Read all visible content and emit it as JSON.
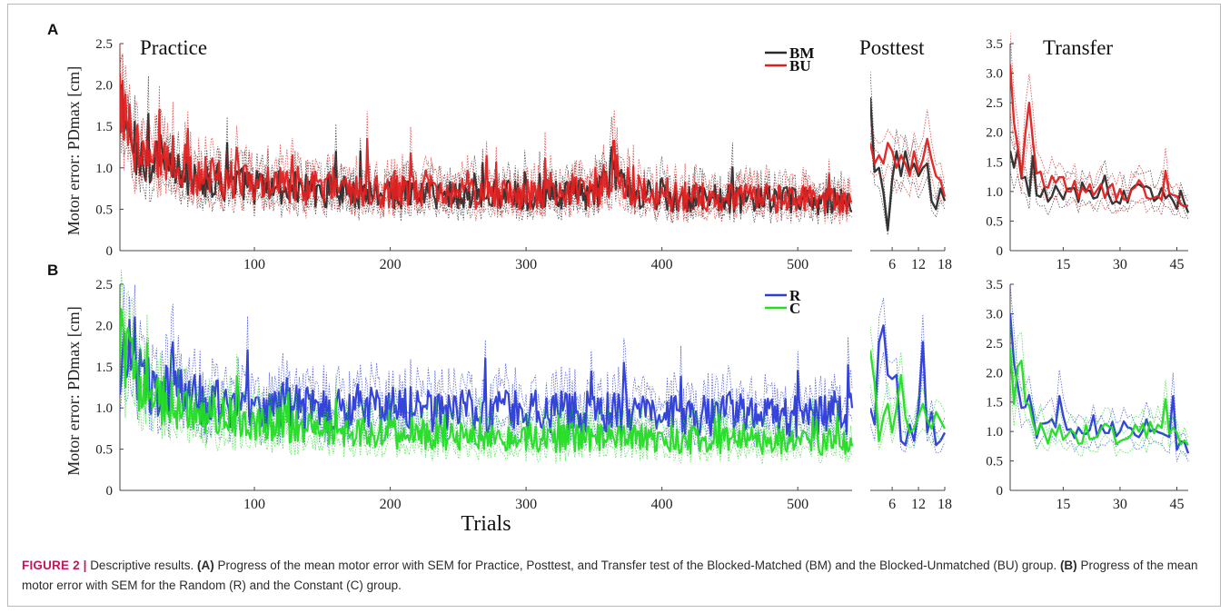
{
  "figure": {
    "panels": [
      {
        "label": "A",
        "ylabel": "Motor error: PDmax [cm]",
        "subplots": [
          {
            "title": "Practice",
            "xlim": [
              1,
              540
            ],
            "ylim": [
              0,
              2.5
            ],
            "xticks": [
              100,
              200,
              300,
              400,
              500
            ],
            "yticks": [
              "0",
              "0.5",
              "1.0",
              "1.5",
              "2.0",
              "2.5"
            ]
          },
          {
            "title": "Posttest",
            "xlim": [
              1,
              18
            ],
            "ylim": [
              0,
              2.5
            ],
            "xticks": [
              6,
              12,
              18
            ],
            "yticks": []
          },
          {
            "title": "Transfer",
            "xlim": [
              1,
              48
            ],
            "ylim": [
              0,
              3.5
            ],
            "xticks": [
              15,
              30,
              45
            ],
            "yticks": [
              "0",
              "0.5",
              "1.0",
              "1.5",
              "2.0",
              "2.5",
              "3.0",
              "3.5"
            ]
          }
        ],
        "legend": [
          {
            "name": "BM",
            "color": "#2a2a2a"
          },
          {
            "name": "BU",
            "color": "#e02020"
          }
        ]
      },
      {
        "label": "B",
        "ylabel": "Motor error: PDmax [cm]",
        "subplots": [
          {
            "title": "",
            "xlim": [
              1,
              540
            ],
            "ylim": [
              0,
              2.5
            ],
            "xticks": [
              100,
              200,
              300,
              400,
              500
            ],
            "yticks": [
              "0",
              "0.5",
              "1.0",
              "1.5",
              "2.0",
              "2.5"
            ]
          },
          {
            "title": "",
            "xlim": [
              1,
              18
            ],
            "ylim": [
              0,
              2.5
            ],
            "xticks": [
              6,
              12,
              18
            ],
            "yticks": []
          },
          {
            "title": "",
            "xlim": [
              1,
              48
            ],
            "ylim": [
              0,
              3.5
            ],
            "xticks": [
              15,
              30,
              45
            ],
            "yticks": [
              "0",
              "0.5",
              "1.0",
              "1.5",
              "2.0",
              "2.5",
              "3.0",
              "3.5"
            ]
          }
        ],
        "legend": [
          {
            "name": "R",
            "color": "#2a3bd8"
          },
          {
            "name": "C",
            "color": "#22dd22"
          }
        ]
      }
    ],
    "xlabel": "Trials"
  },
  "chart_data": [
    {
      "type": "line",
      "panel": "A",
      "subplot": "Practice",
      "xlim": [
        1,
        540
      ],
      "ylim": [
        0,
        2.5
      ],
      "band": "SEM (dotted)",
      "series": [
        {
          "name": "BM",
          "color": "#2a2a2a",
          "anchors": [
            [
              1,
              1.8
            ],
            [
              5,
              1.45
            ],
            [
              15,
              1.15
            ],
            [
              30,
              1.0
            ],
            [
              60,
              0.85
            ],
            [
              100,
              0.78
            ],
            [
              150,
              0.72
            ],
            [
              200,
              0.7
            ],
            [
              250,
              0.68
            ],
            [
              300,
              0.66
            ],
            [
              350,
              0.68
            ],
            [
              365,
              0.9
            ],
            [
              380,
              0.7
            ],
            [
              400,
              0.65
            ],
            [
              450,
              0.62
            ],
            [
              500,
              0.6
            ],
            [
              540,
              0.58
            ]
          ],
          "spikes": [
            [
              2,
              2.0
            ],
            [
              22,
              1.65
            ],
            [
              80,
              1.3
            ],
            [
              363,
              1.25
            ]
          ]
        },
        {
          "name": "BU",
          "color": "#e02020",
          "anchors": [
            [
              1,
              2.0
            ],
            [
              5,
              1.6
            ],
            [
              15,
              1.2
            ],
            [
              30,
              1.05
            ],
            [
              60,
              0.9
            ],
            [
              100,
              0.8
            ],
            [
              150,
              0.75
            ],
            [
              200,
              0.72
            ],
            [
              250,
              0.7
            ],
            [
              300,
              0.68
            ],
            [
              350,
              0.7
            ],
            [
              365,
              0.95
            ],
            [
              380,
              0.72
            ],
            [
              400,
              0.66
            ],
            [
              450,
              0.64
            ],
            [
              500,
              0.62
            ],
            [
              540,
              0.6
            ]
          ],
          "spikes": [
            [
              3,
              2.05
            ],
            [
              30,
              1.7
            ],
            [
              183,
              1.35
            ],
            [
              128,
              1.15
            ]
          ]
        }
      ]
    },
    {
      "type": "line",
      "panel": "A",
      "subplot": "Posttest",
      "xlim": [
        1,
        18
      ],
      "ylim": [
        0,
        2.5
      ],
      "series": [
        {
          "name": "BM",
          "color": "#2a2a2a",
          "x": [
            1,
            2,
            3,
            4,
            5,
            6,
            7,
            8,
            9,
            10,
            11,
            12,
            13,
            14,
            15,
            16,
            17,
            18
          ],
          "y": [
            1.85,
            0.95,
            1.0,
            0.7,
            0.25,
            0.85,
            1.2,
            0.9,
            1.2,
            0.95,
            1.05,
            0.9,
            1.0,
            1.05,
            0.6,
            0.5,
            0.75,
            0.6
          ]
        },
        {
          "name": "BU",
          "color": "#e02020",
          "x": [
            1,
            2,
            3,
            4,
            5,
            6,
            7,
            8,
            9,
            10,
            11,
            12,
            13,
            14,
            15,
            16,
            17,
            18
          ],
          "y": [
            1.3,
            1.05,
            1.15,
            1.05,
            1.3,
            1.2,
            1.0,
            1.15,
            1.05,
            0.9,
            1.2,
            0.95,
            1.1,
            1.35,
            1.1,
            0.9,
            0.85,
            0.65
          ]
        }
      ]
    },
    {
      "type": "line",
      "panel": "A",
      "subplot": "Transfer",
      "xlim": [
        1,
        48
      ],
      "ylim": [
        0,
        3.5
      ],
      "series": [
        {
          "name": "BM",
          "color": "#2a2a2a",
          "anchors": [
            [
              1,
              1.6
            ],
            [
              3,
              1.55
            ],
            [
              5,
              1.1
            ],
            [
              10,
              1.0
            ],
            [
              20,
              1.0
            ],
            [
              30,
              0.95
            ],
            [
              40,
              0.95
            ],
            [
              48,
              0.7
            ]
          ],
          "spikes": [
            [
              3,
              1.7
            ],
            [
              7,
              1.6
            ]
          ]
        },
        {
          "name": "BU",
          "color": "#e02020",
          "anchors": [
            [
              1,
              3.1
            ],
            [
              2,
              2.0
            ],
            [
              4,
              1.5
            ],
            [
              6,
              2.5
            ],
            [
              8,
              1.2
            ],
            [
              12,
              1.1
            ],
            [
              20,
              1.05
            ],
            [
              30,
              1.05
            ],
            [
              40,
              1.0
            ],
            [
              48,
              0.65
            ]
          ],
          "spikes": [
            [
              1,
              3.15
            ],
            [
              6,
              2.5
            ],
            [
              42,
              1.35
            ]
          ]
        }
      ]
    },
    {
      "type": "line",
      "panel": "B",
      "subplot": "Practice",
      "xlim": [
        1,
        540
      ],
      "ylim": [
        0,
        2.5
      ],
      "series": [
        {
          "name": "R",
          "color": "#2a3bd8",
          "anchors": [
            [
              1,
              1.6
            ],
            [
              10,
              1.4
            ],
            [
              30,
              1.2
            ],
            [
              60,
              1.1
            ],
            [
              100,
              1.0
            ],
            [
              150,
              0.95
            ],
            [
              200,
              1.0
            ],
            [
              250,
              0.95
            ],
            [
              300,
              0.95
            ],
            [
              350,
              0.95
            ],
            [
              400,
              0.9
            ],
            [
              450,
              0.9
            ],
            [
              500,
              0.9
            ],
            [
              540,
              0.9
            ]
          ],
          "spikes": [
            [
              12,
              2.1
            ],
            [
              40,
              1.8
            ],
            [
              95,
              1.7
            ],
            [
              270,
              1.6
            ],
            [
              372,
              1.55
            ],
            [
              500,
              1.45
            ]
          ]
        },
        {
          "name": "C",
          "color": "#22dd22",
          "anchors": [
            [
              1,
              2.2
            ],
            [
              5,
              1.6
            ],
            [
              20,
              1.2
            ],
            [
              50,
              0.95
            ],
            [
              100,
              0.85
            ],
            [
              150,
              0.75
            ],
            [
              200,
              0.7
            ],
            [
              250,
              0.67
            ],
            [
              300,
              0.65
            ],
            [
              350,
              0.63
            ],
            [
              400,
              0.62
            ],
            [
              450,
              0.6
            ],
            [
              500,
              0.6
            ],
            [
              540,
              0.58
            ]
          ],
          "spikes": [
            [
              2,
              2.2
            ],
            [
              8,
              1.85
            ]
          ]
        }
      ]
    },
    {
      "type": "line",
      "panel": "B",
      "subplot": "Posttest",
      "xlim": [
        1,
        18
      ],
      "ylim": [
        0,
        2.5
      ],
      "series": [
        {
          "name": "R",
          "color": "#2a3bd8",
          "x": [
            1,
            2,
            3,
            4,
            5,
            6,
            7,
            8,
            9,
            10,
            11,
            12,
            13,
            14,
            15,
            16,
            17,
            18
          ],
          "y": [
            1.0,
            0.8,
            1.8,
            2.0,
            1.4,
            1.35,
            1.4,
            0.6,
            0.55,
            0.8,
            0.6,
            1.0,
            1.8,
            0.7,
            0.95,
            0.55,
            0.6,
            0.7
          ]
        },
        {
          "name": "C",
          "color": "#22dd22",
          "x": [
            1,
            2,
            3,
            4,
            5,
            6,
            7,
            8,
            9,
            10,
            11,
            12,
            13,
            14,
            15,
            16,
            17,
            18
          ],
          "y": [
            1.7,
            1.3,
            0.6,
            0.9,
            1.05,
            0.7,
            1.0,
            1.4,
            0.9,
            0.7,
            0.75,
            0.9,
            1.05,
            0.85,
            0.75,
            0.95,
            0.85,
            0.75
          ]
        }
      ]
    },
    {
      "type": "line",
      "panel": "B",
      "subplot": "Transfer",
      "xlim": [
        1,
        48
      ],
      "ylim": [
        0,
        3.5
      ],
      "series": [
        {
          "name": "R",
          "color": "#2a3bd8",
          "anchors": [
            [
              1,
              2.95
            ],
            [
              2,
              1.9
            ],
            [
              4,
              1.5
            ],
            [
              8,
              1.0
            ],
            [
              20,
              1.1
            ],
            [
              30,
              1.1
            ],
            [
              40,
              1.05
            ],
            [
              48,
              0.7
            ]
          ],
          "spikes": [
            [
              1,
              3.0
            ],
            [
              14,
              1.6
            ],
            [
              44,
              1.6
            ]
          ]
        },
        {
          "name": "C",
          "color": "#22dd22",
          "anchors": [
            [
              1,
              2.9
            ],
            [
              2,
              1.5
            ],
            [
              4,
              2.1
            ],
            [
              6,
              1.3
            ],
            [
              10,
              0.95
            ],
            [
              20,
              0.95
            ],
            [
              30,
              0.95
            ],
            [
              40,
              1.0
            ],
            [
              48,
              0.85
            ]
          ],
          "spikes": [
            [
              4,
              2.2
            ],
            [
              42,
              1.55
            ]
          ]
        }
      ]
    }
  ],
  "caption": {
    "head": "FIGURE 2",
    "sep": "|",
    "intro": "Descriptive results.",
    "a_label": "(A)",
    "a_text": "Progress of the mean motor error with SEM for Practice, Posttest, and Transfer test of the Blocked-Matched (BM) and the Blocked-Unmatched (BU) group.",
    "b_label": "(B)",
    "b_text": "Progress of the mean motor error with SEM for the Random (R) and the Constant (C) group."
  }
}
